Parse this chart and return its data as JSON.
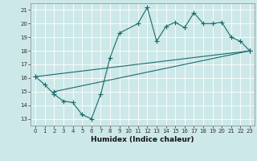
{
  "bg_color": "#cde8e8",
  "grid_color": "#b0d8d8",
  "line_color": "#1a6b6b",
  "xlabel": "Humidex (Indice chaleur)",
  "xlim": [
    -0.5,
    23.5
  ],
  "ylim": [
    12.5,
    21.5
  ],
  "yticks": [
    13,
    14,
    15,
    16,
    17,
    18,
    19,
    20,
    21
  ],
  "xticks": [
    0,
    1,
    2,
    3,
    4,
    5,
    6,
    7,
    8,
    9,
    10,
    11,
    12,
    13,
    14,
    15,
    16,
    17,
    18,
    19,
    20,
    21,
    22,
    23
  ],
  "zigzag_x": [
    0,
    1,
    2,
    3,
    4,
    5,
    6,
    7,
    8,
    9,
    11,
    12,
    13,
    14,
    15,
    16,
    17,
    18,
    19,
    20,
    21,
    22,
    23
  ],
  "zigzag_y": [
    16.1,
    15.5,
    14.8,
    14.3,
    14.2,
    13.3,
    13.0,
    14.8,
    17.5,
    19.3,
    20.0,
    21.2,
    18.7,
    19.8,
    20.1,
    19.7,
    20.8,
    20.0,
    20.0,
    20.1,
    19.0,
    18.7,
    18.0
  ],
  "line2_x": [
    0,
    23
  ],
  "line2_y": [
    16.1,
    18.0
  ],
  "line3_x": [
    2,
    23
  ],
  "line3_y": [
    15.0,
    18.0
  ],
  "marker_size": 4,
  "line_width": 0.8,
  "tick_fontsize": 5,
  "label_fontsize": 6.5
}
